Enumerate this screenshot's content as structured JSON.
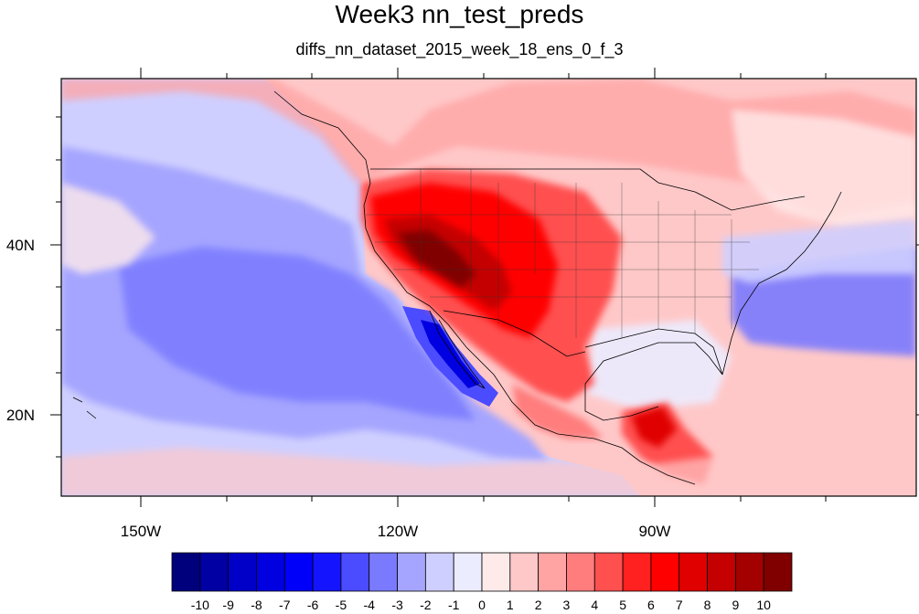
{
  "title": "Week3 nn_test_preds",
  "subtitle": "diffs_nn_dataset_2015_week_18_ens_0_f_3",
  "lon_labels": [
    "150W",
    "120W",
    "90W"
  ],
  "lat_labels": [
    "40N",
    "20N"
  ],
  "colorbar": {
    "labels": [
      "-10",
      "-9",
      "-8",
      "-7",
      "-6",
      "-5",
      "-4",
      "-3",
      "-2",
      "-1",
      "0",
      "1",
      "2",
      "3",
      "4",
      "5",
      "6",
      "7",
      "8",
      "9",
      "10"
    ],
    "colors": [
      "#00007d",
      "#0000a3",
      "#0000c8",
      "#0000e0",
      "#0000fa",
      "#1414ff",
      "#4b4bff",
      "#7a7aff",
      "#a5a5ff",
      "#cfcfff",
      "#ececff",
      "#ffeaea",
      "#ffc8c8",
      "#ffa3a3",
      "#ff7d7d",
      "#ff5050",
      "#ff2020",
      "#ff0000",
      "#e00000",
      "#c40000",
      "#a30000",
      "#800000"
    ]
  },
  "map": {
    "projection": "cylindrical-equidistant",
    "lon_range": [
      -159,
      -59
    ],
    "lat_range": [
      10,
      60
    ],
    "field_colors": {
      "ocean_background": "#a5a5ff",
      "ocean_light": "#cfcfff",
      "near_zero": "#ececff",
      "warm_light": "#ffc8c8",
      "warm": "#ff7d7d",
      "hot": "#e00000",
      "hottest": "#800000",
      "cold_core": "#0000e0"
    }
  }
}
